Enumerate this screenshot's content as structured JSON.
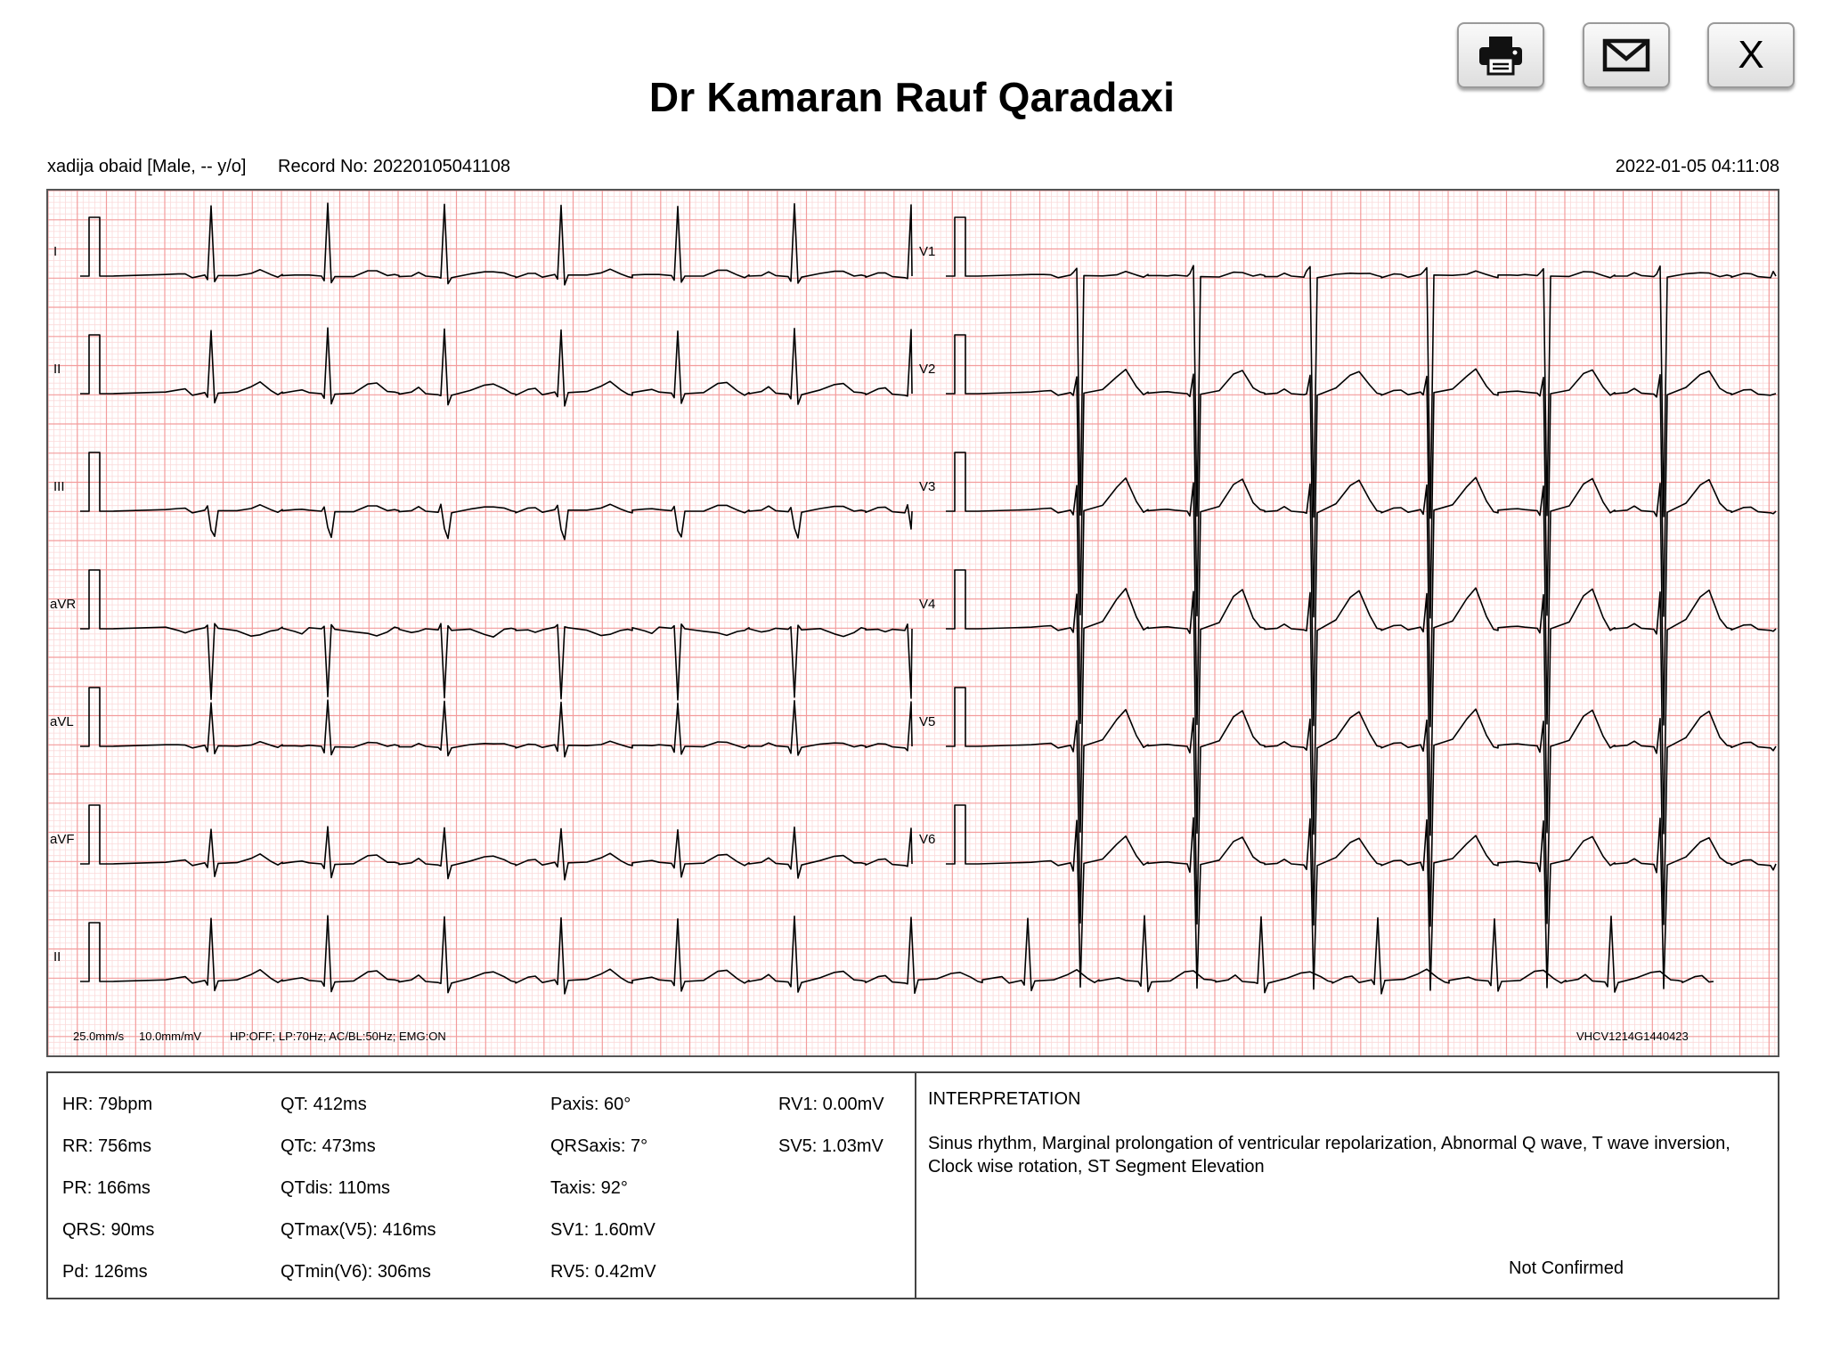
{
  "header": {
    "title": "Dr Kamaran Rauf Qaradaxi",
    "print_icon": "printer-icon",
    "email_icon": "envelope-icon",
    "close_label": "X"
  },
  "patient": {
    "info": "xadija obaid [Male, -- y/o]",
    "record": "Record No: 20220105041108",
    "datetime": "2022-01-05 04:11:08"
  },
  "ecg": {
    "leads_left": [
      "I",
      "II",
      "III",
      "aVR",
      "aVL",
      "aVF"
    ],
    "leads_right": [
      "V1",
      "V2",
      "V3",
      "V4",
      "V5",
      "V6"
    ],
    "rhythm_lead": "II",
    "speed": "25.0mm/s",
    "gain": "10.0mm/mV",
    "filters": "HP:OFF; LP:70Hz; AC/BL:50Hz; EMG:ON",
    "device_id": "VHCV1214G1440423",
    "grid_major_color": "#f39c9c",
    "grid_minor_color": "#fbdada",
    "trace_color": "#000000"
  },
  "measurements": {
    "col1": [
      "HR: 79bpm",
      "RR: 756ms",
      "PR: 166ms",
      "QRS: 90ms",
      "Pd: 126ms"
    ],
    "col2": [
      "QT: 412ms",
      "QTc: 473ms",
      "QTdis: 110ms",
      "QTmax(V5): 416ms",
      "QTmin(V6): 306ms"
    ],
    "col3": [
      "Paxis: 60°",
      "QRSaxis: 7°",
      "Taxis: 92°",
      "SV1: 1.60mV",
      "RV5: 0.42mV"
    ],
    "col4": [
      "RV1: 0.00mV",
      "SV5: 1.03mV"
    ]
  },
  "interpretation": {
    "title": "INTERPRETATION",
    "text": "Sinus rhythm, Marginal prolongation of ventricular repolarization, Abnormal Q wave, T wave inversion, Clock wise rotation, ST Segment Elevation",
    "status": "Not Confirmed"
  }
}
